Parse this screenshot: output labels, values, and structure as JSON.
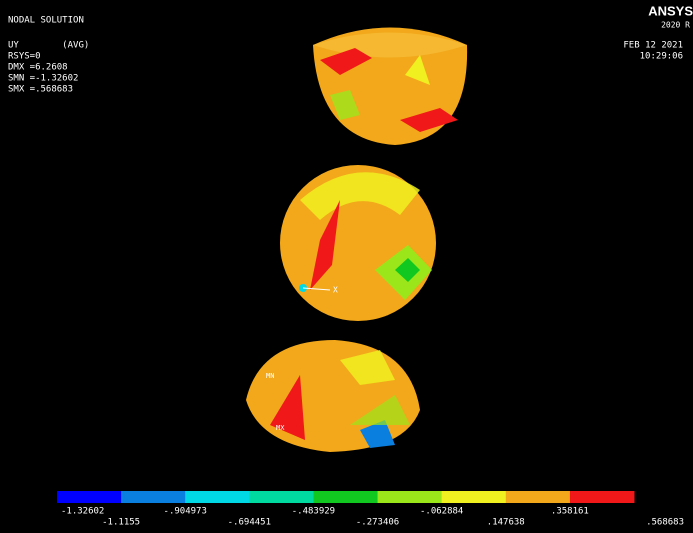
{
  "header": {
    "title": "NODAL SOLUTION",
    "lines": [
      "UY        (AVG)",
      "RSYS=0",
      "DMX =6.2608",
      "SMN =-1.32602",
      "SMX =.568683"
    ],
    "logo": "ANSYS",
    "version": "2020 R",
    "date": "FEB 12 2021",
    "time": "10:29:06"
  },
  "markers": {
    "min": "MN",
    "max": "MX",
    "axis": "X"
  },
  "legend": {
    "colors": [
      "#0000ff",
      "#0a7fe0",
      "#00d8e6",
      "#00d9a0",
      "#10c820",
      "#9be61a",
      "#f0f020",
      "#f2a81a",
      "#f01818"
    ],
    "labels": [
      "-1.32602",
      "-1.1155",
      "-.904973",
      "-.694451",
      "-.483929",
      "-.273406",
      "-.062884",
      ".147638",
      ".358161",
      ".568683"
    ]
  }
}
